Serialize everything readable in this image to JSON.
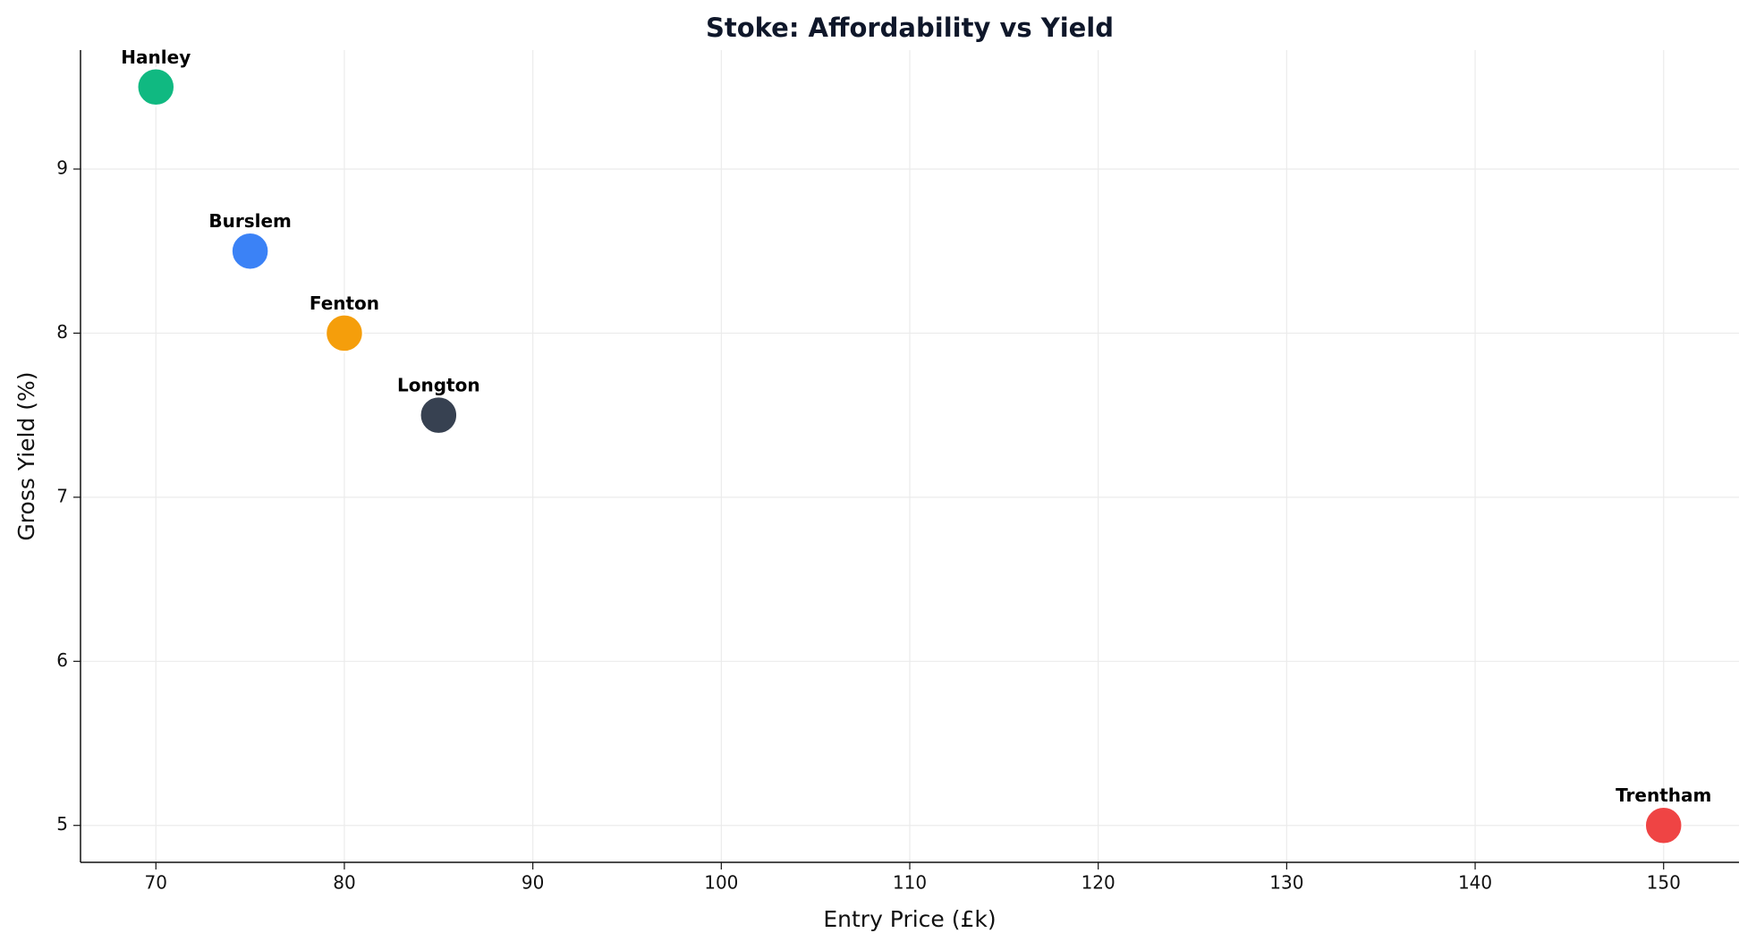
{
  "chart_data": {
    "type": "scatter",
    "title": "Stoke: Affordability vs Yield",
    "x_label": "Entry Price (£k)",
    "y_label": "Gross Yield (%)",
    "series": [
      {
        "name": "Hanley",
        "color": "#10b981",
        "x": [
          70
        ],
        "values": [
          9.5
        ]
      },
      {
        "name": "Burslem",
        "color": "#3b82f6",
        "x": [
          75
        ],
        "values": [
          8.5
        ]
      },
      {
        "name": "Fenton",
        "color": "#f59e0b",
        "x": [
          80
        ],
        "values": [
          8
        ]
      },
      {
        "name": "Longton",
        "color": "#374151",
        "x": [
          85
        ],
        "values": [
          7.5
        ]
      },
      {
        "name": "Trentham",
        "color": "#ef4444",
        "x": [
          150
        ],
        "values": [
          5
        ]
      }
    ],
    "xlim": [
      66,
      154
    ],
    "xticks": [
      70,
      80,
      90,
      100,
      110,
      120,
      130,
      140,
      150
    ],
    "ylim": [
      4.775,
      9.725
    ],
    "yticks": [
      5,
      6,
      7,
      8,
      9
    ],
    "grid": true
  }
}
